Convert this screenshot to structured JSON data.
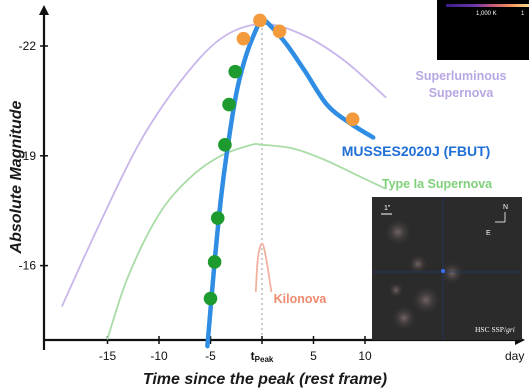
{
  "chart_data": {
    "type": "line",
    "xlabel": "Time since the peak (rest frame)",
    "ylabel": "Absolute Magnitude",
    "x_unit_label": "day",
    "x_ticks": [
      -15,
      -10,
      -5,
      0,
      5,
      10
    ],
    "x_tick_labels": [
      "-15",
      "-10",
      "-5",
      "t",
      "5",
      "10"
    ],
    "x_tick_peak_subscript": "Peak",
    "y_ticks": [
      -22,
      -19,
      -16
    ],
    "y_tick_labels": [
      "-22",
      "-19",
      "-16"
    ],
    "xlim": [
      -20,
      12
    ],
    "ylim": [
      -13.8,
      -23.2
    ],
    "y_inverted": true,
    "grid": false,
    "peak_marker_line": "vertical dotted line at t = 0",
    "series": [
      {
        "name": "Superluminous Supernova",
        "color": "#c9b6ea",
        "x": [
          -19.4,
          -16,
          -12,
          -8,
          -4,
          0,
          4,
          8,
          12
        ],
        "y": [
          -14.9,
          -17.0,
          -19.3,
          -21.0,
          -22.2,
          -22.6,
          -22.3,
          -21.6,
          -20.6
        ]
      },
      {
        "name": "MUSSES2020J (FBUT)",
        "color": "#2f8de4",
        "x": [
          -5.3,
          -4.6,
          -4.0,
          -3.3,
          -2.5,
          -1.7,
          -0.8,
          0,
          1.0,
          2.5,
          4.2,
          6.3,
          8.5,
          10.8
        ],
        "y": [
          -13.8,
          -16.1,
          -17.8,
          -19.3,
          -20.7,
          -21.6,
          -22.3,
          -22.7,
          -22.5,
          -22.0,
          -21.3,
          -20.4,
          -19.9,
          -19.5
        ]
      },
      {
        "name": "Type Ia Supernova",
        "color": "#a9dca6",
        "x": [
          -15,
          -13,
          -10,
          -7,
          -4,
          -1,
          0,
          3,
          6,
          9,
          12
        ],
        "y": [
          -14.0,
          -15.7,
          -17.4,
          -18.4,
          -19.0,
          -19.3,
          -19.3,
          -19.2,
          -18.9,
          -18.5,
          -18.1
        ]
      },
      {
        "name": "Kilonova",
        "color": "#f2b1a0",
        "x": [
          -0.6,
          -0.4,
          0.0,
          0.4,
          0.9
        ],
        "y": [
          -15.3,
          -16.2,
          -16.6,
          -16.2,
          -15.3
        ]
      }
    ],
    "observed_points": [
      {
        "x": -5.0,
        "y": -15.1,
        "band": "green"
      },
      {
        "x": -4.6,
        "y": -16.1,
        "band": "green"
      },
      {
        "x": -4.3,
        "y": -17.3,
        "band": "green"
      },
      {
        "x": -3.6,
        "y": -19.3,
        "band": "green"
      },
      {
        "x": -3.2,
        "y": -20.4,
        "band": "green"
      },
      {
        "x": -2.6,
        "y": -21.3,
        "band": "green"
      },
      {
        "x": -1.8,
        "y": -22.2,
        "band": "orange"
      },
      {
        "x": -0.2,
        "y": -22.7,
        "band": "orange"
      },
      {
        "x": 1.7,
        "y": -22.4,
        "band": "orange"
      },
      {
        "x": 8.8,
        "y": -20.0,
        "band": "orange"
      }
    ],
    "point_colors": {
      "green": "#1d9b2e",
      "orange": "#f39a3c"
    },
    "curve_label_colors": {
      "Superluminous Supernova": "#b9a7e2",
      "MUSSES2020J (FBUT)": "#1f6fd6",
      "Type Ia Supernova": "#7fd07a",
      "Kilonova": "#ee8a6e"
    },
    "annotations": {
      "superluminous_label": [
        "Superluminous",
        "Supernova"
      ],
      "musses_label": "MUSSES2020J (FBUT)",
      "typeia_label": "Type Ia Supernova",
      "kilonova_label": "Kilonova"
    },
    "inset_image": {
      "scale_label": "1\"",
      "north_label": "N",
      "east_label": "E",
      "caption_prefix": "HSC SSP/",
      "caption_filters": "gri"
    },
    "colorbar_fragment": {
      "tick_label": "1,000 K",
      "right_tick": "1"
    }
  }
}
